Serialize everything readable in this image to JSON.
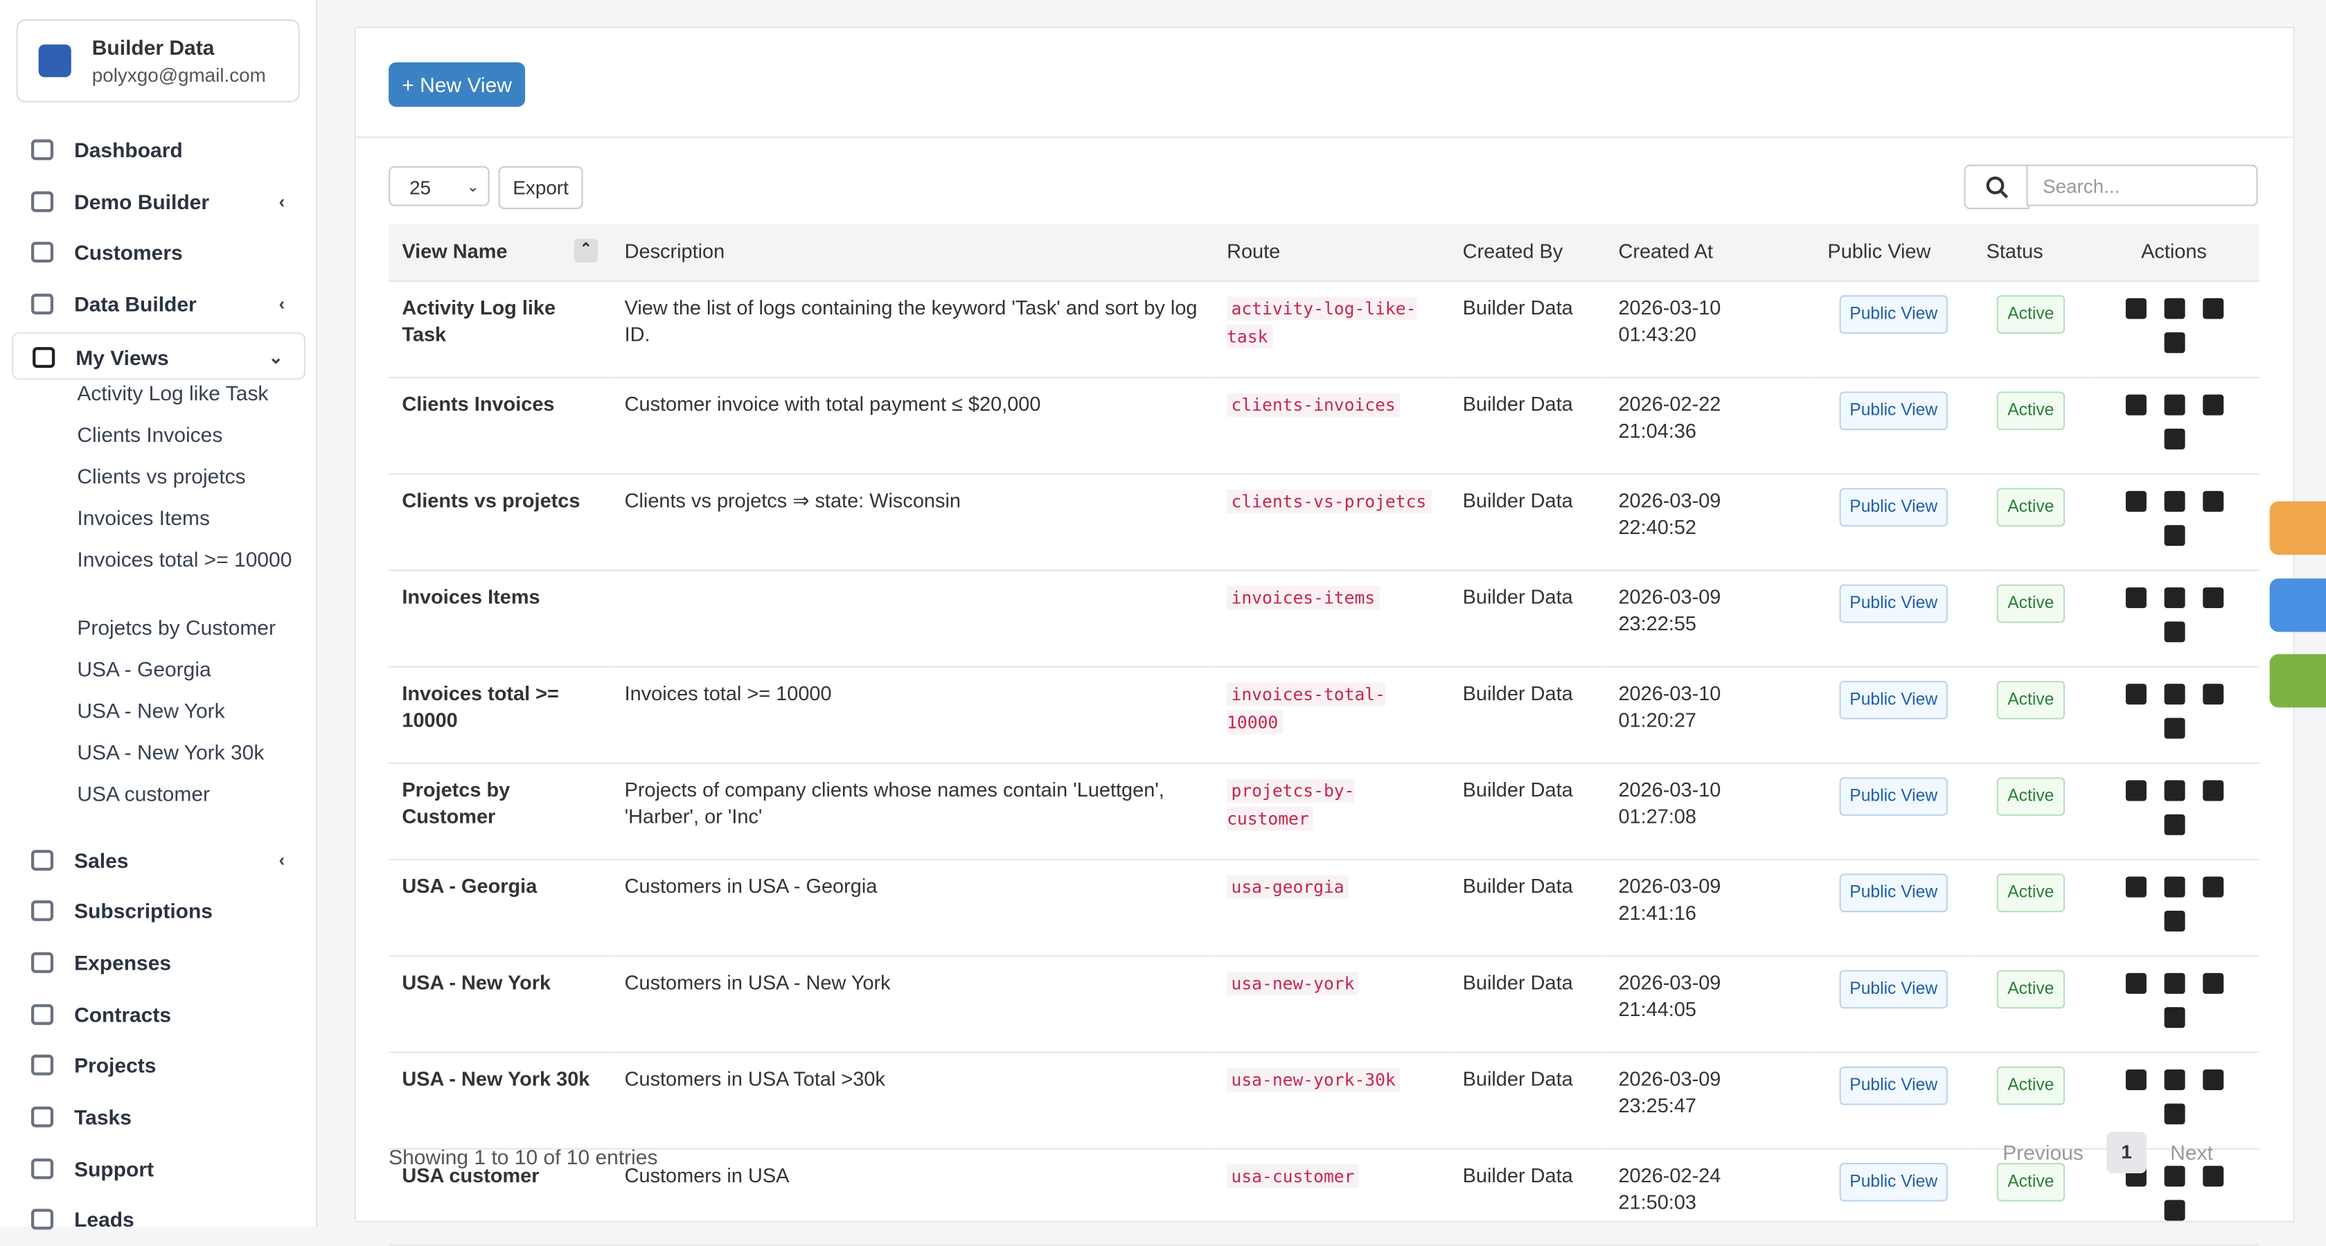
{
  "sidebar": {
    "brand": {
      "name": "Builder Data",
      "email": "polyxgo@gmail.com"
    },
    "nav": [
      {
        "label": "Dashboard"
      },
      {
        "label": "Demo Builder",
        "chevron": "left"
      },
      {
        "label": "Customers"
      },
      {
        "label": "Data Builder",
        "chevron": "left"
      },
      {
        "label": "My Views",
        "chevron": "down",
        "active": true,
        "children": [
          "Activity Log like Task",
          "Clients Invoices",
          "Clients vs projetcs",
          "Invoices Items",
          "Invoices total >= 10000",
          "Projetcs by Customer",
          "USA - Georgia",
          "USA - New York",
          "USA - New York 30k",
          "USA customer"
        ]
      },
      {
        "label": "Sales",
        "chevron": "left"
      },
      {
        "label": "Subscriptions"
      },
      {
        "label": "Expenses"
      },
      {
        "label": "Contracts"
      },
      {
        "label": "Projects"
      },
      {
        "label": "Tasks"
      },
      {
        "label": "Support"
      },
      {
        "label": "Leads"
      }
    ]
  },
  "toolbar": {
    "new_view": "+ New View",
    "page_size": "25",
    "export": "Export",
    "search_placeholder": "Search..."
  },
  "table": {
    "columns": [
      "View Name",
      "Description",
      "Route",
      "Created By",
      "Created At",
      "Public View",
      "Status",
      "Actions"
    ],
    "rows": [
      [
        "Activity Log like Task",
        "View the list of logs containing the keyword 'Task' and sort by log ID.",
        "activity-log-like-task",
        "Builder Data",
        "2026-03-10 01:43:20",
        "Public View",
        "Active"
      ],
      [
        "Clients Invoices",
        "Customer invoice with total payment ≤ $20,000",
        "clients-invoices",
        "Builder Data",
        "2026-02-22 21:04:36",
        "Public View",
        "Active"
      ],
      [
        "Clients vs projetcs",
        "Clients vs projetcs ⇒ state: Wisconsin",
        "clients-vs-projetcs",
        "Builder Data",
        "2026-03-09 22:40:52",
        "Public View",
        "Active"
      ],
      [
        "Invoices Items",
        "",
        "invoices-items",
        "Builder Data",
        "2026-03-09 23:22:55",
        "Public View",
        "Active"
      ],
      [
        "Invoices total >= 10000",
        "Invoices total >= 10000",
        "invoices-total-10000",
        "Builder Data",
        "2026-03-10 01:20:27",
        "Public View",
        "Active"
      ],
      [
        "Projetcs by Customer",
        "Projects of company clients whose names contain 'Luettgen', 'Harber', or 'Inc'",
        "projetcs-by-customer",
        "Builder Data",
        "2026-03-10 01:27:08",
        "Public View",
        "Active"
      ],
      [
        "USA - Georgia",
        "Customers in USA - Georgia",
        "usa-georgia",
        "Builder Data",
        "2026-03-09 21:41:16",
        "Public View",
        "Active"
      ],
      [
        "USA - New York",
        "Customers in USA - New York",
        "usa-new-york",
        "Builder Data",
        "2026-03-09 21:44:05",
        "Public View",
        "Active"
      ],
      [
        "USA - New York 30k",
        "Customers in USA Total >30k",
        "usa-new-york-30k",
        "Builder Data",
        "2026-03-09 23:25:47",
        "Public View",
        "Active"
      ],
      [
        "USA customer",
        "Customers in USA",
        "usa-customer",
        "Builder Data",
        "2026-02-24 21:50:03",
        "Public View",
        "Active"
      ]
    ]
  },
  "footer": {
    "info": "Showing 1 to 10 of 10 entries",
    "previous": "Previous",
    "page": "1",
    "next": "Next"
  }
}
